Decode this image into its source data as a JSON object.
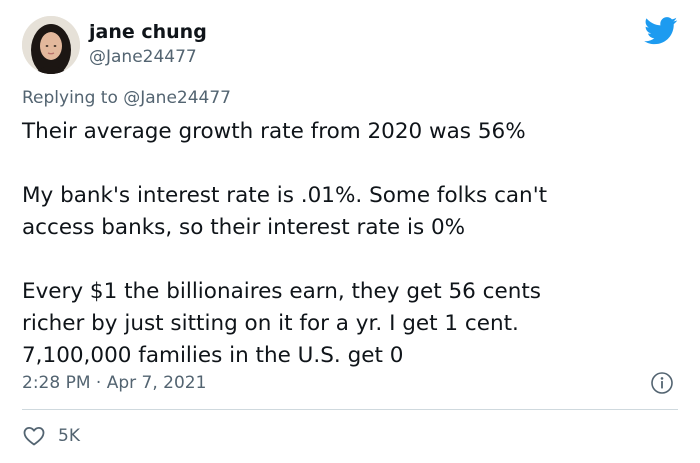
{
  "author": {
    "display_name": "jane chung",
    "handle": "@Jane24477"
  },
  "reply": {
    "prefix": "Replying to",
    "mention": "@Jane24477"
  },
  "tweet": {
    "paragraphs": [
      "Their average growth rate from 2020 was 56%",
      "My bank's interest rate is .01%. Some folks can't\naccess banks, so their interest rate is 0%",
      "Every $1 the billionaires earn, they get 56 cents\nricher by just sitting on it for a yr. I get 1 cent.\n7,100,000 families in the U.S. get 0"
    ],
    "timestamp": "2:28 PM · Apr 7, 2021"
  },
  "actions": {
    "like_count": "5K"
  },
  "icons": {
    "brand": "twitter-bird-icon",
    "info": "info-icon",
    "like": "heart-icon"
  },
  "colors": {
    "brand_blue": "#1d9bf0",
    "text_primary": "#0f1419",
    "text_secondary": "#536471",
    "divider": "#cfd9de"
  }
}
